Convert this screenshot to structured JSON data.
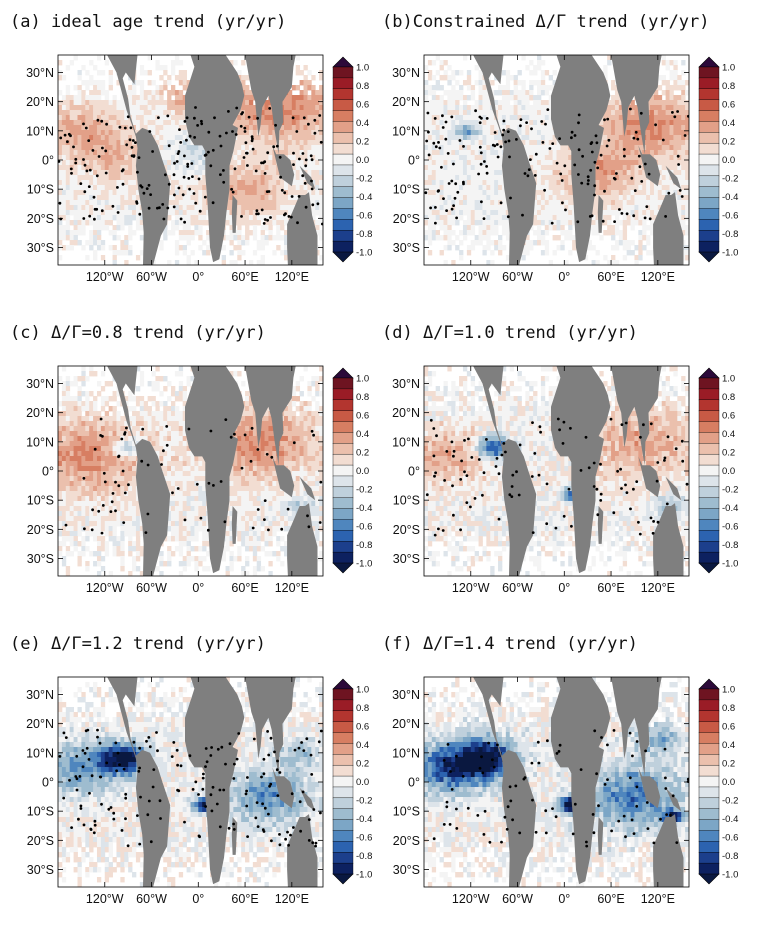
{
  "colors": {
    "land": "#7f7f7f",
    "scale": [
      "#2c0a3a",
      "#6e1421",
      "#9a1c26",
      "#b3352f",
      "#c85a45",
      "#d77e62",
      "#e2a088",
      "#ebc0ad",
      "#f2ddd2",
      "#f4f4f4",
      "#dde4ea",
      "#bfd0dc",
      "#9ebccf",
      "#7ca6c6",
      "#4f86be",
      "#2c63b0",
      "#1c3f8c",
      "#0d2160",
      "#0a1840"
    ]
  },
  "chart_data": [
    {
      "type": "heatmap",
      "title": "(a) ideal age trend (yr/yr)",
      "x_ticks": [
        "120°W",
        "60°W",
        "0°",
        "60°E",
        "120°E"
      ],
      "y_ticks": [
        "30°N",
        "20°N",
        "10°N",
        "0°",
        "10°S",
        "20°S",
        "30°S"
      ],
      "colorbar_ticks": [
        "1.0",
        "0.8",
        "0.6",
        "0.4",
        "0.2",
        "0.0",
        "-0.2",
        "-0.4",
        "-0.6",
        "-0.8",
        "-1.0"
      ],
      "colorbar_range": [
        -1.0,
        1.0
      ],
      "intensity": 0.28,
      "patches": [
        {
          "lon": 105,
          "lat": 18,
          "value": 0.45,
          "r": 0.28
        },
        {
          "lon": -150,
          "lat": 10,
          "value": 0.3,
          "r": 0.22
        },
        {
          "lon": -105,
          "lat": 0,
          "value": 0.2,
          "r": 0.2
        },
        {
          "lon": 60,
          "lat": -10,
          "value": 0.3,
          "r": 0.22
        },
        {
          "lon": 0,
          "lat": 2,
          "value": -0.2,
          "r": 0.15
        },
        {
          "lon": -10,
          "lat": 22,
          "value": 0.35,
          "r": 0.15
        }
      ],
      "stipple_density": 0.7
    },
    {
      "type": "heatmap",
      "title": "(b)Constrained Δ/Γ trend (yr/yr)",
      "x_ticks": [
        "120°W",
        "60°W",
        "0°",
        "60°E",
        "120°E"
      ],
      "y_ticks": [
        "30°N",
        "20°N",
        "10°N",
        "0°",
        "10°S",
        "20°S",
        "30°S"
      ],
      "colorbar_ticks": [
        "1.0",
        "0.8",
        "0.6",
        "0.4",
        "0.2",
        "0.0",
        "-0.2",
        "-0.4",
        "-0.6",
        "-0.8",
        "-1.0"
      ],
      "colorbar_range": [
        -1.0,
        1.0
      ],
      "intensity": 0.28,
      "patches": [
        {
          "lon": 110,
          "lat": 12,
          "value": 0.4,
          "r": 0.28
        },
        {
          "lon": -125,
          "lat": 10,
          "value": -0.5,
          "r": 0.06
        },
        {
          "lon": 40,
          "lat": -5,
          "value": 0.35,
          "r": 0.2
        },
        {
          "lon": 40,
          "lat": 20,
          "value": 0.9,
          "r": 0.03
        },
        {
          "lon": -60,
          "lat": -28,
          "value": 0.8,
          "r": 0.03
        }
      ],
      "stipple_density": 0.55
    },
    {
      "type": "heatmap",
      "title": "(c) Δ/Γ=0.8 trend (yr/yr)",
      "x_ticks": [
        "120°W",
        "60°W",
        "0°",
        "60°E",
        "120°E"
      ],
      "y_ticks": [
        "30°N",
        "20°N",
        "10°N",
        "0°",
        "10°S",
        "20°S",
        "30°S"
      ],
      "colorbar_ticks": [
        "1.0",
        "0.8",
        "0.6",
        "0.4",
        "0.2",
        "0.0",
        "-0.2",
        "-0.4",
        "-0.6",
        "-0.8",
        "-1.0"
      ],
      "colorbar_range": [
        -1.0,
        1.0
      ],
      "intensity": 0.36,
      "patches": [
        {
          "lon": -140,
          "lat": 5,
          "value": 0.4,
          "r": 0.3
        },
        {
          "lon": -90,
          "lat": 8,
          "value": -0.5,
          "r": 0.07
        },
        {
          "lon": 80,
          "lat": 10,
          "value": 0.4,
          "r": 0.3
        },
        {
          "lon": 40,
          "lat": 20,
          "value": 0.9,
          "r": 0.03
        },
        {
          "lon": 15,
          "lat": -8,
          "value": -0.4,
          "r": 0.04
        },
        {
          "lon": 130,
          "lat": -12,
          "value": -0.3,
          "r": 0.08
        }
      ],
      "stipple_density": 0.25
    },
    {
      "type": "heatmap",
      "title": "(d) Δ/Γ=1.0 trend (yr/yr)",
      "x_ticks": [
        "120°W",
        "60°W",
        "0°",
        "60°E",
        "120°E"
      ],
      "y_ticks": [
        "30°N",
        "20°N",
        "10°N",
        "0°",
        "10°S",
        "20°S",
        "30°S"
      ],
      "colorbar_ticks": [
        "1.0",
        "0.8",
        "0.6",
        "0.4",
        "0.2",
        "0.0",
        "-0.2",
        "-0.4",
        "-0.6",
        "-0.8",
        "-1.0"
      ],
      "colorbar_range": [
        -1.0,
        1.0
      ],
      "intensity": 0.38,
      "patches": [
        {
          "lon": -90,
          "lat": 8,
          "value": -0.8,
          "r": 0.09
        },
        {
          "lon": -150,
          "lat": 5,
          "value": 0.3,
          "r": 0.22
        },
        {
          "lon": 10,
          "lat": -8,
          "value": -0.7,
          "r": 0.05
        },
        {
          "lon": 100,
          "lat": 10,
          "value": 0.3,
          "r": 0.3
        },
        {
          "lon": 135,
          "lat": -12,
          "value": -0.4,
          "r": 0.08
        },
        {
          "lon": 40,
          "lat": 20,
          "value": 0.9,
          "r": 0.03
        }
      ],
      "stipple_density": 0.35
    },
    {
      "type": "heatmap",
      "title": "(e) Δ/Γ=1.2 trend (yr/yr)",
      "x_ticks": [
        "120°W",
        "60°W",
        "0°",
        "60°E",
        "120°E"
      ],
      "y_ticks": [
        "30°N",
        "20°N",
        "10°N",
        "0°",
        "10°S",
        "20°S",
        "30°S"
      ],
      "colorbar_ticks": [
        "1.0",
        "0.8",
        "0.6",
        "0.4",
        "0.2",
        "0.0",
        "-0.2",
        "-0.4",
        "-0.6",
        "-0.8",
        "-1.0"
      ],
      "colorbar_range": [
        -1.0,
        1.0
      ],
      "intensity": 0.45,
      "patches": [
        {
          "lon": -95,
          "lat": 8,
          "value": -1.0,
          "r": 0.12
        },
        {
          "lon": -150,
          "lat": 5,
          "value": -0.5,
          "r": 0.2
        },
        {
          "lon": 8,
          "lat": -8,
          "value": -0.9,
          "r": 0.06
        },
        {
          "lon": 90,
          "lat": -5,
          "value": -0.5,
          "r": 0.22
        },
        {
          "lon": 130,
          "lat": 10,
          "value": -0.3,
          "r": 0.12
        },
        {
          "lon": 40,
          "lat": 20,
          "value": 0.9,
          "r": 0.03
        }
      ],
      "stipple_density": 0.55
    },
    {
      "type": "heatmap",
      "title": "(f) Δ/Γ=1.4 trend (yr/yr)",
      "x_ticks": [
        "120°W",
        "60°W",
        "0°",
        "60°E",
        "120°E"
      ],
      "y_ticks": [
        "30°N",
        "20°N",
        "10°N",
        "0°",
        "10°S",
        "20°S",
        "30°S"
      ],
      "colorbar_ticks": [
        "1.0",
        "0.8",
        "0.6",
        "0.4",
        "0.2",
        "0.0",
        "-0.2",
        "-0.4",
        "-0.6",
        "-0.8",
        "-1.0"
      ],
      "colorbar_range": [
        -1.0,
        1.0
      ],
      "intensity": 0.5,
      "patches": [
        {
          "lon": -100,
          "lat": 8,
          "value": -1.0,
          "r": 0.16
        },
        {
          "lon": -150,
          "lat": 5,
          "value": -0.7,
          "r": 0.2
        },
        {
          "lon": 10,
          "lat": -8,
          "value": -1.0,
          "r": 0.07
        },
        {
          "lon": 90,
          "lat": -5,
          "value": -0.6,
          "r": 0.25
        },
        {
          "lon": 140,
          "lat": -12,
          "value": -0.9,
          "r": 0.05
        },
        {
          "lon": 120,
          "lat": 15,
          "value": -0.4,
          "r": 0.12
        },
        {
          "lon": 40,
          "lat": 20,
          "value": 0.9,
          "r": 0.03
        }
      ],
      "stipple_density": 0.3
    }
  ]
}
